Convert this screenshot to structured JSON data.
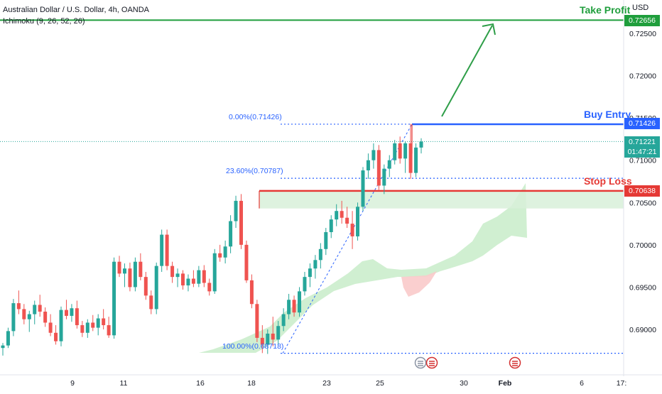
{
  "header": {
    "title": "Australian Dollar / U.S. Dollar, 4h, OANDA",
    "indicator": "Ichimoku (9, 26, 52, 26)"
  },
  "axis": {
    "currency": "USD"
  },
  "colors": {
    "up": "#26a69a",
    "down": "#ef5350",
    "take_profit": "#1f9e3c",
    "entry": "#2962ff",
    "stop": "#e53935",
    "cloud_bull": "#c8ecc9",
    "cloud_bear": "#f9caca",
    "fib": "#2962ff",
    "arrow": "#2e9e48"
  },
  "levels": {
    "take_profit": {
      "label": "Take Profit",
      "price": "0.72656"
    },
    "buy_entry": {
      "label": "Buy Entry",
      "price": "0.71426"
    },
    "stop_loss": {
      "label": "Stop Loss",
      "price": "0.70638"
    },
    "current": {
      "price": "0.71221",
      "countdown": "01:47:21"
    }
  },
  "fib": {
    "f0": "0.00%(0.71426)",
    "f236": "23.60%(0.70787)",
    "f100": "100.00%(0.68718)"
  },
  "chart_data": {
    "type": "candlestick",
    "title": "Australian Dollar / U.S. Dollar, 4h, OANDA",
    "y_ticks": [
      "0.72500",
      "0.72000",
      "0.71500",
      "0.71000",
      "0.70500",
      "0.70000",
      "0.69500",
      "0.69000"
    ],
    "y_tick_values": [
      0.725,
      0.72,
      0.715,
      0.71,
      0.705,
      0.7,
      0.695,
      0.69
    ],
    "x_ticks": [
      "9",
      "11",
      "16",
      "18",
      "23",
      "25",
      "30",
      "Feb",
      "6",
      "17:"
    ],
    "levels": {
      "take_profit": 0.72656,
      "buy_entry": 0.71426,
      "stop_loss": 0.70638
    },
    "fib_levels": [
      0.71426,
      0.70787,
      0.68718
    ],
    "candles": [
      [
        0.6878,
        0.6884,
        0.6869,
        0.6881
      ],
      [
        0.6881,
        0.6902,
        0.6878,
        0.6898
      ],
      [
        0.6898,
        0.6936,
        0.6892,
        0.6931
      ],
      [
        0.6931,
        0.6946,
        0.6918,
        0.6924
      ],
      [
        0.6924,
        0.693,
        0.6906,
        0.6912
      ],
      [
        0.6912,
        0.6922,
        0.6897,
        0.6918
      ],
      [
        0.6918,
        0.6934,
        0.6906,
        0.6929
      ],
      [
        0.6929,
        0.6941,
        0.6915,
        0.6921
      ],
      [
        0.6921,
        0.6926,
        0.6903,
        0.6908
      ],
      [
        0.6908,
        0.6918,
        0.6892,
        0.6896
      ],
      [
        0.6896,
        0.6905,
        0.6882,
        0.6886
      ],
      [
        0.6886,
        0.6927,
        0.688,
        0.6923
      ],
      [
        0.6923,
        0.6935,
        0.6912,
        0.6916
      ],
      [
        0.6916,
        0.693,
        0.6909,
        0.6925
      ],
      [
        0.6925,
        0.6934,
        0.6901,
        0.6905
      ],
      [
        0.6905,
        0.691,
        0.6891,
        0.6896
      ],
      [
        0.6896,
        0.6912,
        0.689,
        0.6908
      ],
      [
        0.6908,
        0.6917,
        0.6898,
        0.6902
      ],
      [
        0.6902,
        0.6918,
        0.6893,
        0.6913
      ],
      [
        0.6913,
        0.6924,
        0.69,
        0.6905
      ],
      [
        0.6905,
        0.6915,
        0.689,
        0.6893
      ],
      [
        0.6893,
        0.6985,
        0.6889,
        0.698
      ],
      [
        0.698,
        0.6987,
        0.6962,
        0.6966
      ],
      [
        0.6966,
        0.6978,
        0.695,
        0.6972
      ],
      [
        0.6972,
        0.6979,
        0.6945,
        0.695
      ],
      [
        0.695,
        0.6985,
        0.6945,
        0.698
      ],
      [
        0.698,
        0.699,
        0.6958,
        0.6962
      ],
      [
        0.6962,
        0.6968,
        0.6935,
        0.694
      ],
      [
        0.694,
        0.6946,
        0.6918,
        0.6924
      ],
      [
        0.6924,
        0.6979,
        0.6918,
        0.6975
      ],
      [
        0.6975,
        0.7018,
        0.6968,
        0.7012
      ],
      [
        0.7012,
        0.7018,
        0.697,
        0.6975
      ],
      [
        0.6975,
        0.698,
        0.6955,
        0.6962
      ],
      [
        0.6962,
        0.6972,
        0.695,
        0.6966
      ],
      [
        0.6966,
        0.697,
        0.6947,
        0.6952
      ],
      [
        0.6952,
        0.6965,
        0.6945,
        0.696
      ],
      [
        0.696,
        0.697,
        0.695,
        0.6954
      ],
      [
        0.6954,
        0.6975,
        0.695,
        0.697
      ],
      [
        0.697,
        0.6976,
        0.695,
        0.6955
      ],
      [
        0.6955,
        0.696,
        0.694,
        0.6945
      ],
      [
        0.6945,
        0.6995,
        0.6942,
        0.699
      ],
      [
        0.699,
        0.7,
        0.698,
        0.6985
      ],
      [
        0.6985,
        0.7005,
        0.6978,
        0.6998
      ],
      [
        0.6998,
        0.7035,
        0.699,
        0.7028
      ],
      [
        0.7028,
        0.7058,
        0.702,
        0.7052
      ],
      [
        0.7052,
        0.706,
        0.6995,
        0.7
      ],
      [
        0.7,
        0.7005,
        0.6955,
        0.6958
      ],
      [
        0.6958,
        0.6965,
        0.6925,
        0.693
      ],
      [
        0.693,
        0.6935,
        0.6885,
        0.689
      ],
      [
        0.689,
        0.6905,
        0.6872,
        0.6882
      ],
      [
        0.6882,
        0.69,
        0.6871,
        0.6895
      ],
      [
        0.6895,
        0.6915,
        0.688,
        0.6888
      ],
      [
        0.6888,
        0.691,
        0.6882,
        0.6904
      ],
      [
        0.6904,
        0.6925,
        0.6898,
        0.6918
      ],
      [
        0.6918,
        0.6942,
        0.6912,
        0.6935
      ],
      [
        0.6935,
        0.694,
        0.6915,
        0.692
      ],
      [
        0.692,
        0.695,
        0.6915,
        0.6945
      ],
      [
        0.6945,
        0.6968,
        0.694,
        0.6962
      ],
      [
        0.6962,
        0.6978,
        0.695,
        0.6972
      ],
      [
        0.6972,
        0.6988,
        0.696,
        0.6982
      ],
      [
        0.6982,
        0.7002,
        0.6972,
        0.6995
      ],
      [
        0.6995,
        0.702,
        0.6988,
        0.7015
      ],
      [
        0.7015,
        0.7035,
        0.7008,
        0.703
      ],
      [
        0.703,
        0.7048,
        0.7022,
        0.704
      ],
      [
        0.704,
        0.7052,
        0.7025,
        0.7032
      ],
      [
        0.7032,
        0.7045,
        0.702,
        0.7025
      ],
      [
        0.7025,
        0.704,
        0.6995,
        0.701
      ],
      [
        0.701,
        0.705,
        0.7005,
        0.7045
      ],
      [
        0.7045,
        0.7092,
        0.704,
        0.7088
      ],
      [
        0.7088,
        0.7108,
        0.7078,
        0.71
      ],
      [
        0.71,
        0.712,
        0.709,
        0.7112
      ],
      [
        0.7112,
        0.7118,
        0.7065,
        0.707
      ],
      [
        0.707,
        0.7095,
        0.706,
        0.709
      ],
      [
        0.709,
        0.7106,
        0.708,
        0.71
      ],
      [
        0.71,
        0.7124,
        0.7095,
        0.712
      ],
      [
        0.712,
        0.7128,
        0.7096,
        0.7102
      ],
      [
        0.7102,
        0.7122,
        0.7085,
        0.712
      ],
      [
        0.712,
        0.7143,
        0.7078,
        0.7085
      ],
      [
        0.7085,
        0.712,
        0.708,
        0.7115
      ],
      [
        0.7115,
        0.7126,
        0.7108,
        0.7122
      ]
    ]
  }
}
